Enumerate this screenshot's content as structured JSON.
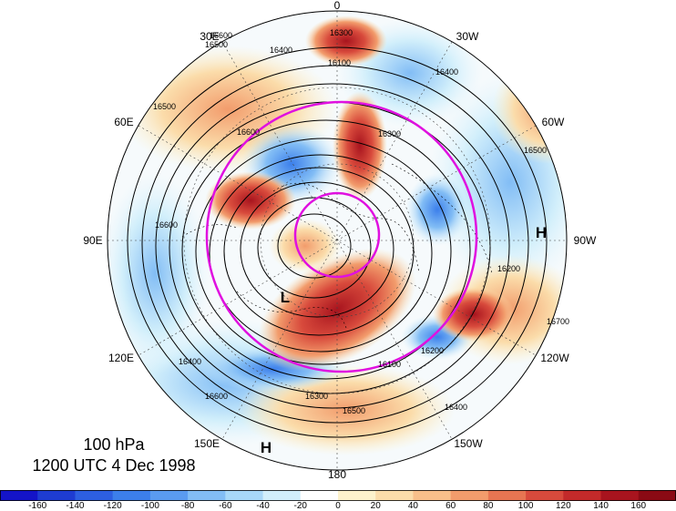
{
  "map": {
    "projection": "north-polar-stereographic",
    "longitude_labels": [
      "0",
      "30W",
      "60W",
      "90W",
      "120W",
      "150W",
      "180",
      "150E",
      "120E",
      "90E",
      "60E",
      "30E"
    ],
    "pressure_systems": [
      "L",
      "H",
      "H"
    ],
    "contour_labels": [
      "16300",
      "16100",
      "16400",
      "16500",
      "16600",
      "16400",
      "16500",
      "16300",
      "16600",
      "16200",
      "16100",
      "16400",
      "16500",
      "16300",
      "16200",
      "16600",
      "16400",
      "16500",
      "16700",
      "16600"
    ],
    "colors": {
      "contour": "#000000",
      "magenta_circle": "#e010e0",
      "background_neutral": "#ffffff"
    }
  },
  "caption": {
    "level": "100 hPa",
    "time": "1200 UTC 4 Dec 1998"
  },
  "colorbar": {
    "ticks": [
      "-160",
      "-140",
      "-120",
      "-100",
      "-80",
      "-60",
      "-40",
      "-20",
      "0",
      "20",
      "40",
      "60",
      "80",
      "100",
      "120",
      "140",
      "160"
    ],
    "colors": [
      "#1414c8",
      "#1e3cd2",
      "#2d5fe1",
      "#3c7feb",
      "#5a9bf0",
      "#82bdf5",
      "#a8d8f8",
      "#d2effb",
      "#ffffff",
      "#fdf2cc",
      "#fbdcaa",
      "#f8bf8a",
      "#f29c6c",
      "#e77552",
      "#d84a3c",
      "#c32a2a",
      "#a8141e",
      "#8a0a14"
    ]
  }
}
